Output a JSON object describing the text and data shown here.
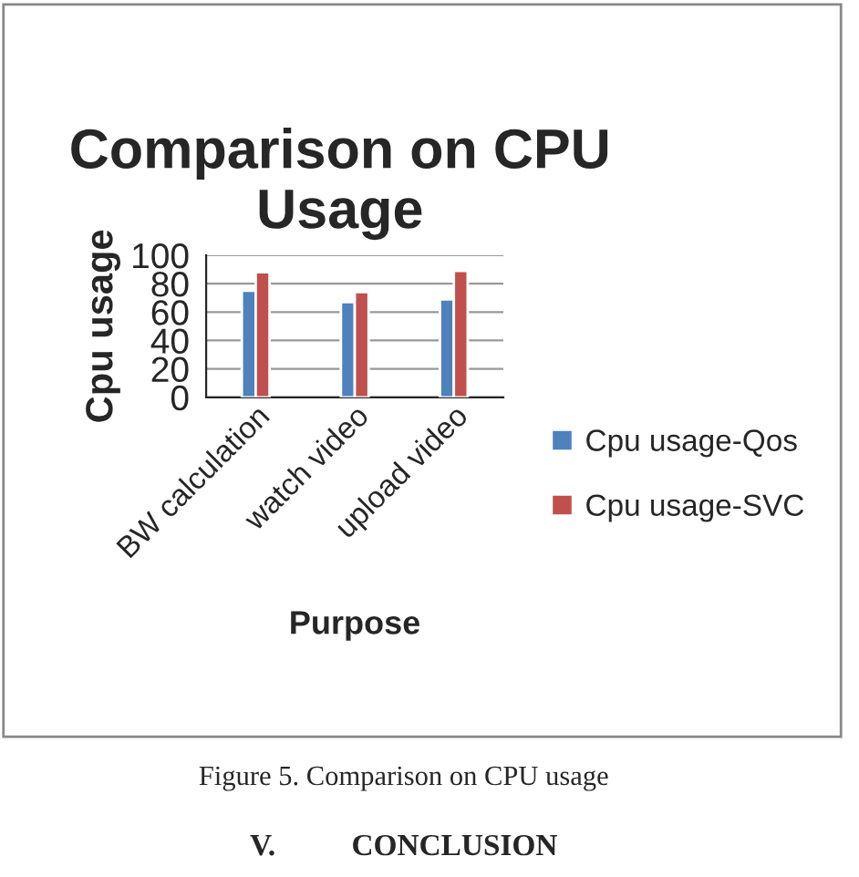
{
  "chart_data": {
    "type": "bar",
    "title": "Comparison on CPU Usage",
    "xlabel": "Purpose",
    "ylabel": "Cpu usage",
    "categories": [
      "BW calculation",
      "watch video",
      "upload video"
    ],
    "series": [
      {
        "name": "Cpu usage-Qos",
        "color": "#4f81bd",
        "values": [
          75,
          67,
          69
        ]
      },
      {
        "name": "Cpu usage-SVC",
        "color": "#c0504d",
        "values": [
          88,
          74,
          89
        ]
      }
    ],
    "ylim": [
      0,
      100
    ],
    "yticks": [
      0,
      20,
      40,
      60,
      80,
      100
    ],
    "grid": "y",
    "legend": "right",
    "annotations": [
      "Figure 5. Comparison on CPU usage",
      "V.          CONCLUSION"
    ]
  }
}
